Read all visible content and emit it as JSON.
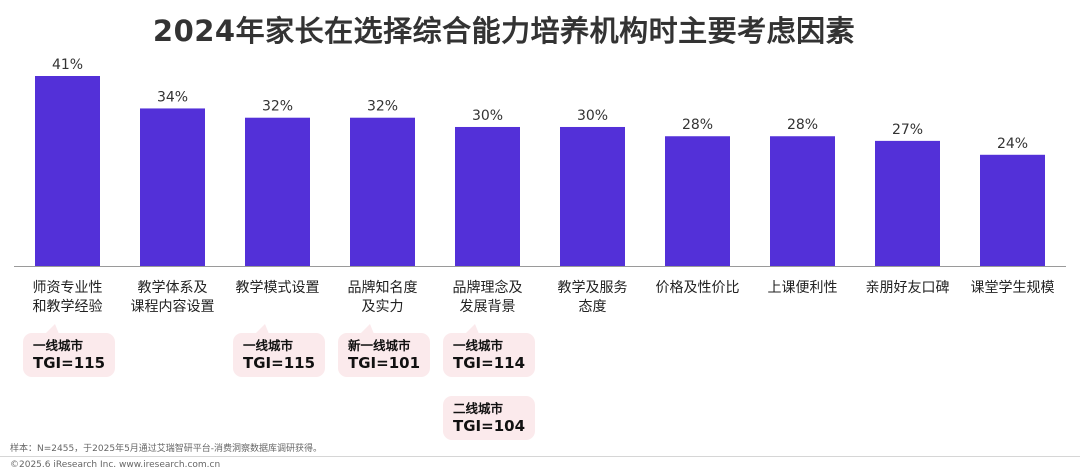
{
  "chart_data": {
    "type": "bar",
    "title": "2024年家长在选择综合能力培养机构时主要考虑因素",
    "categories": [
      [
        "师资专业性",
        "和教学经验"
      ],
      [
        "教学体系及",
        "课程内容设置"
      ],
      [
        "教学模式设置"
      ],
      [
        "品牌知名度",
        "及实力"
      ],
      [
        "品牌理念及",
        "发展背景"
      ],
      [
        "教学及服务",
        "态度"
      ],
      [
        "价格及性价比"
      ],
      [
        "上课便利性"
      ],
      [
        "亲朋好友口碑"
      ],
      [
        "课堂学生规模"
      ]
    ],
    "values": [
      41,
      34,
      32,
      32,
      30,
      30,
      28,
      28,
      27,
      24
    ],
    "value_labels": [
      "41%",
      "34%",
      "32%",
      "32%",
      "30%",
      "30%",
      "28%",
      "28%",
      "27%",
      "24%"
    ],
    "ylim": [
      0,
      41
    ],
    "bar_color": "#5330d8",
    "grid": false,
    "annotations": [
      {
        "category_index": 0,
        "key": "一线城市",
        "value": "TGI=115"
      },
      {
        "category_index": 2,
        "key": "一线城市",
        "value": "TGI=115"
      },
      {
        "category_index": 3,
        "key": "新一线城市",
        "value": "TGI=101"
      },
      {
        "category_index": 4,
        "key": "一线城市",
        "value": "TGI=114"
      },
      {
        "category_index": 4,
        "key": "二线城市",
        "value": "TGI=104"
      }
    ]
  },
  "footer": {
    "note": "样本：N=2455，于2025年5月通过艾瑞智研平台-消费洞察数据库调研获得。",
    "copyright": "©2025.6 iResearch Inc. www.iresearch.com.cn"
  }
}
